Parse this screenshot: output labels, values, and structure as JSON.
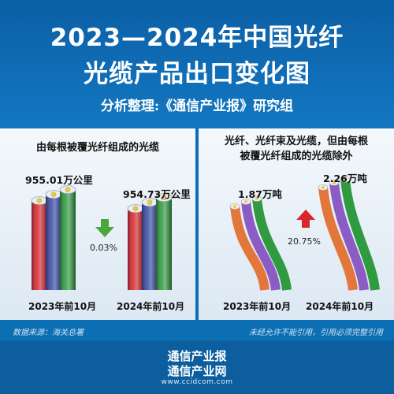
{
  "header": {
    "title_line1": "2023—2024年中国光纤",
    "title_line2": "光缆产品出口变化图",
    "subtitle": "分析整理:《通信产业报》研究组"
  },
  "chart_data": [
    {
      "type": "bar",
      "title": "由每根被覆光纤组成的光缆",
      "categories": [
        "2023年前10月",
        "2024年前10月"
      ],
      "values": [
        955.01,
        954.73
      ],
      "value_labels": [
        "955.01万公里",
        "954.73万公里"
      ],
      "unit": "万公里",
      "change_label": "0.03%",
      "change_direction": "down"
    },
    {
      "type": "bar",
      "title_line1": "光纤、光纤束及光缆，但由每根",
      "title_line2": "被覆光纤组成的光缆除外",
      "categories": [
        "2023年前10月",
        "2024年前10月"
      ],
      "values": [
        1.87,
        2.26
      ],
      "value_labels": [
        "1.87万吨",
        "2.26万吨"
      ],
      "unit": "万吨",
      "change_label": "20.75%",
      "change_direction": "up"
    }
  ],
  "footer": {
    "source": "数据来源：海关总署",
    "notice": "未经允许不能引用，引用必须完整引用",
    "brand1": "通信产业报",
    "brand2": "通信产业网",
    "url": "www.ccidcom.com"
  },
  "colors": {
    "down_arrow": "#4aa83a",
    "up_arrow": "#d9262b",
    "cable_red": "#d8262e",
    "cable_blue": "#3a4aa8",
    "cable_green": "#2f9a3f",
    "cable_orange": "#e3763a",
    "cable_purple": "#8a5cc4"
  }
}
